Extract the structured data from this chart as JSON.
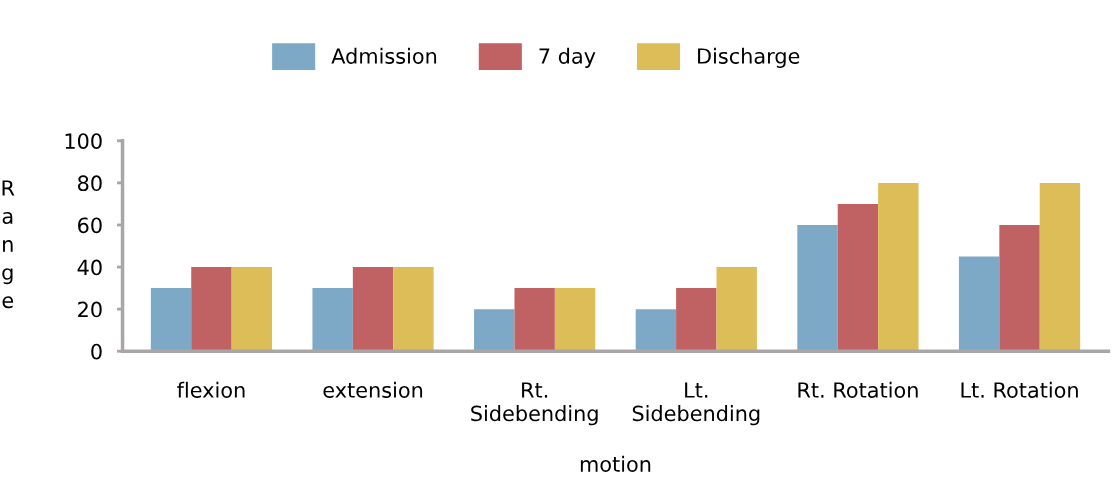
{
  "chart_data": {
    "type": "bar",
    "xlabel": "motion",
    "ylabel": "Range",
    "categories": [
      "flexion",
      "extension",
      "Rt.\nSidebending",
      "Lt.\nSidebending",
      "Rt. Rotation",
      "Lt. Rotation"
    ],
    "series": [
      {
        "name": "Admission",
        "color": "#7ea9c6",
        "values": [
          30,
          30,
          20,
          20,
          60,
          45
        ]
      },
      {
        "name": "7 day",
        "color": "#c06264",
        "values": [
          40,
          40,
          30,
          30,
          70,
          60
        ]
      },
      {
        "name": "Discharge",
        "color": "#dcbd58",
        "values": [
          40,
          40,
          30,
          40,
          80,
          80
        ]
      }
    ],
    "ylim": [
      0,
      100
    ],
    "yticks": [
      0,
      20,
      40,
      60,
      80,
      100
    ],
    "grid": false,
    "legend": "top"
  }
}
